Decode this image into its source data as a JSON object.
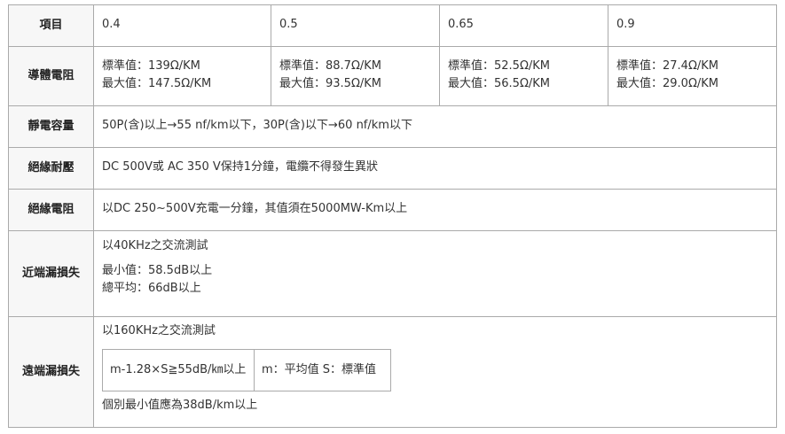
{
  "header": {
    "label": "項目",
    "values": [
      "0.4",
      "0.5",
      "0.65",
      "0.9"
    ]
  },
  "conductor_resistance": {
    "label": "導體電阻",
    "cells": [
      {
        "standard": "標準值：139Ω/KM",
        "max": "最大值：147.5Ω/KM"
      },
      {
        "standard": "標準值：88.7Ω/KM",
        "max": "最大值：93.5Ω/KM"
      },
      {
        "standard": "標準值：52.5Ω/KM",
        "max": "最大值：56.5Ω/KM"
      },
      {
        "standard": "標準值：27.4Ω/KM",
        "max": "最大值：29.0Ω/KM"
      }
    ]
  },
  "capacitance": {
    "label": "靜電容量",
    "value": "50P(含)以上→55 nf/km以下，30P(含)以下→60 nf/km以下"
  },
  "withstand_voltage": {
    "label": "絕緣耐壓",
    "value": "DC 500V或 AC 350 V保持1分鐘，電纜不得發生異狀"
  },
  "insulation_resistance": {
    "label": "絕緣電阻",
    "value": "以DC 250~500V充電一分鐘，其值須在5000MW-Km以上"
  },
  "next": {
    "label": "近端漏損失",
    "line1": "以40KHz之交流測試",
    "line2": "最小值：58.5dB以上",
    "line3": "總平均：66dB以上"
  },
  "fext": {
    "label": "遠端漏損失",
    "line1": "以160KHz之交流測試",
    "formula": "m-1.28×S≧55dB/㎞以上",
    "legend": "m：平均值 S：標準值",
    "line3": "個別最小值應為38dB/km以上"
  }
}
